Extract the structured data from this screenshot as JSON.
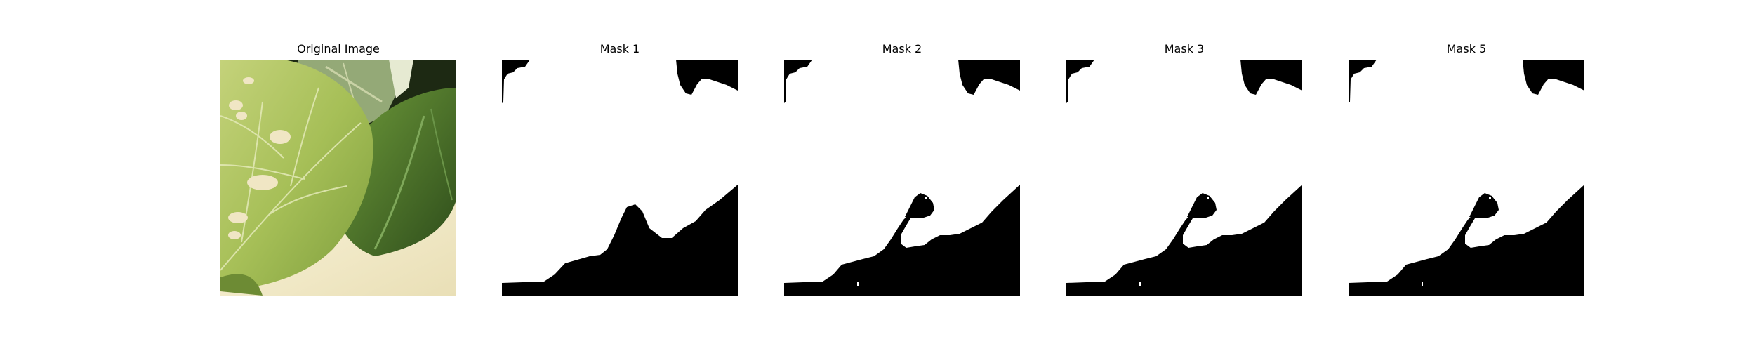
{
  "figure": {
    "panels": [
      {
        "title": "Original Image",
        "kind": "photo"
      },
      {
        "title": "Mask 1",
        "kind": "mask",
        "variant": 1
      },
      {
        "title": "Mask 2",
        "kind": "mask",
        "variant": 2
      },
      {
        "title": "Mask 3",
        "kind": "mask",
        "variant": 2
      },
      {
        "title": "Mask 5",
        "kind": "mask",
        "variant": 2
      }
    ]
  },
  "colors": {
    "mask_foreground": "#ffffff",
    "mask_background": "#000000",
    "leaf_light": "#b7c96a",
    "leaf_mid": "#8fae45",
    "leaf_dark": "#4f7a2b",
    "leaf_shadow": "#2f4f1c",
    "spot": "#efe6c3",
    "table": "#f3ecd0",
    "background_dark": "#1a2410"
  }
}
